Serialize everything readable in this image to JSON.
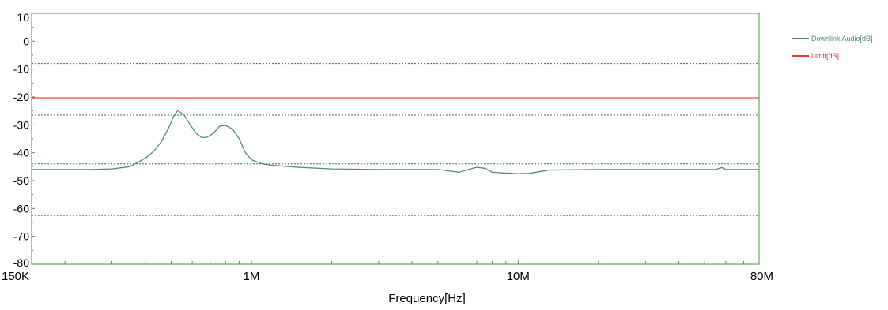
{
  "chart_data": {
    "type": "line",
    "xlabel": "Frequency[Hz]",
    "ylabel": "",
    "x_scale": "log",
    "xlim": [
      150000,
      80000000
    ],
    "ylim": [
      -80,
      10
    ],
    "x_ticks": [
      {
        "value": 150000,
        "label": "150K"
      },
      {
        "value": 1000000,
        "label": "1M"
      },
      {
        "value": 10000000,
        "label": "10M"
      },
      {
        "value": 80000000,
        "label": "80M"
      }
    ],
    "y_ticks": [
      10,
      0,
      -10,
      -20,
      -30,
      -40,
      -50,
      -60,
      -70,
      -80
    ],
    "reference_lines": [
      {
        "value": -8,
        "style": "dashed",
        "color": "#2e7d32"
      },
      {
        "value": -26.5,
        "style": "dashed",
        "color": "#2e7d32"
      },
      {
        "value": -44,
        "style": "dashed",
        "color": "#2e7d32"
      },
      {
        "value": -62.5,
        "style": "dashed",
        "color": "#2e7d32"
      }
    ],
    "legend_position": "top-right",
    "frame_color": "#4a9a3a",
    "series": [
      {
        "name": "Downlink Audio[dB]",
        "color": "#4f8a8b",
        "points": [
          [
            150000,
            -46
          ],
          [
            200000,
            -46
          ],
          [
            250000,
            -46
          ],
          [
            300000,
            -45.8
          ],
          [
            350000,
            -45
          ],
          [
            400000,
            -42
          ],
          [
            430000,
            -39.5
          ],
          [
            460000,
            -36
          ],
          [
            490000,
            -31
          ],
          [
            510000,
            -27
          ],
          [
            530000,
            -24.8
          ],
          [
            560000,
            -26.5
          ],
          [
            590000,
            -30
          ],
          [
            620000,
            -33
          ],
          [
            650000,
            -34.5
          ],
          [
            680000,
            -34.5
          ],
          [
            720000,
            -33
          ],
          [
            760000,
            -30.5
          ],
          [
            800000,
            -30.2
          ],
          [
            850000,
            -31.5
          ],
          [
            900000,
            -35
          ],
          [
            950000,
            -40
          ],
          [
            1000000,
            -42.5
          ],
          [
            1100000,
            -44
          ],
          [
            1200000,
            -44.5
          ],
          [
            1500000,
            -45.2
          ],
          [
            2000000,
            -45.8
          ],
          [
            3000000,
            -46
          ],
          [
            4000000,
            -46
          ],
          [
            5000000,
            -46
          ],
          [
            5500000,
            -46.5
          ],
          [
            6000000,
            -47
          ],
          [
            6500000,
            -46
          ],
          [
            7000000,
            -45.2
          ],
          [
            7500000,
            -45.6
          ],
          [
            8000000,
            -47
          ],
          [
            9000000,
            -47.3
          ],
          [
            10000000,
            -47.5
          ],
          [
            11000000,
            -47.4
          ],
          [
            12000000,
            -46.8
          ],
          [
            13000000,
            -46.2
          ],
          [
            20000000,
            -46
          ],
          [
            40000000,
            -46
          ],
          [
            55000000,
            -46
          ],
          [
            58000000,
            -45.3
          ],
          [
            60000000,
            -46
          ],
          [
            70000000,
            -46
          ],
          [
            80000000,
            -46
          ]
        ]
      },
      {
        "name": "Limit[dB]",
        "color": "#e53935",
        "points": [
          [
            150000,
            -20.3
          ],
          [
            80000000,
            -20.3
          ]
        ]
      }
    ]
  }
}
